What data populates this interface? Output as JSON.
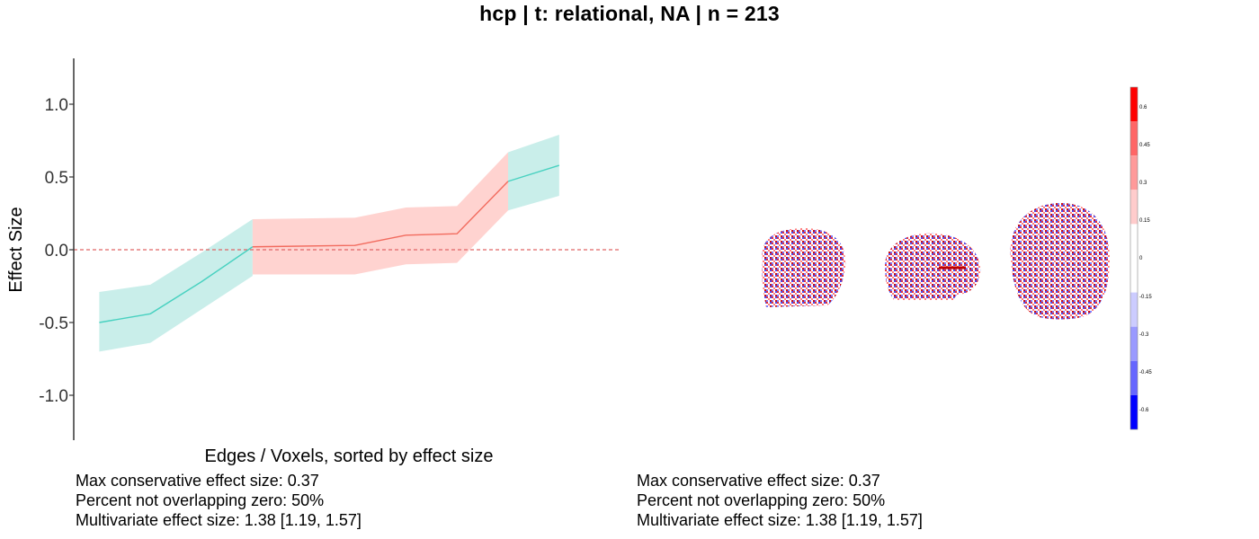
{
  "title": "hcp | t: relational, NA | n = 213",
  "chart_data": {
    "type": "line",
    "xlabel": "Edges / Voxels, sorted by effect size",
    "ylabel": "Effect Size",
    "ylim": [
      -1.3,
      1.3
    ],
    "yticks": [
      {
        "value": 1.0,
        "label": "1.0"
      },
      {
        "value": 0.5,
        "label": "0.5"
      },
      {
        "value": 0.0,
        "label": "0.0"
      },
      {
        "value": -0.5,
        "label": "-0.5"
      },
      {
        "value": -1.0,
        "label": "-1.0"
      }
    ],
    "reference_line": {
      "y": 0,
      "style": "dashed",
      "color": "#e06666"
    },
    "grid": false,
    "series": [
      {
        "color": "#48d1c0",
        "fill": "#c9eeea",
        "points": [
          {
            "x": 1,
            "y": -0.5,
            "lo": -0.7,
            "hi": -0.29
          },
          {
            "x": 2,
            "y": -0.44,
            "lo": -0.64,
            "hi": -0.24
          },
          {
            "x": 3,
            "y": -0.22,
            "lo": -0.41,
            "hi": -0.02
          },
          {
            "x": 4,
            "y": 0.02,
            "lo": -0.18,
            "hi": 0.21
          }
        ]
      },
      {
        "color": "#f26b5e",
        "fill": "#ffd3d0",
        "points": [
          {
            "x": 4,
            "y": 0.02,
            "lo": -0.17,
            "hi": 0.21
          },
          {
            "x": 6,
            "y": 0.03,
            "lo": -0.17,
            "hi": 0.22
          },
          {
            "x": 7,
            "y": 0.1,
            "lo": -0.1,
            "hi": 0.29
          },
          {
            "x": 8,
            "y": 0.11,
            "lo": -0.09,
            "hi": 0.3
          },
          {
            "x": 9,
            "y": 0.47,
            "lo": 0.27,
            "hi": 0.67
          }
        ]
      },
      {
        "color": "#48d1c0",
        "fill": "#c9eeea",
        "points": [
          {
            "x": 9,
            "y": 0.47,
            "lo": 0.27,
            "hi": 0.67
          },
          {
            "x": 10,
            "y": 0.58,
            "lo": 0.37,
            "hi": 0.79
          }
        ]
      }
    ],
    "xlim": [
      0.5,
      11.2
    ]
  },
  "colorbar": {
    "labels": [
      "0.6",
      "0.45",
      "0.3",
      "0.15",
      "0",
      "-0.15",
      "-0.3",
      "-0.45",
      "-0.6"
    ],
    "colors": [
      "#ff0000",
      "#ff6666",
      "#ff9a9a",
      "#ffcccc",
      "#ffffff",
      "#ffffff",
      "#ccccff",
      "#9a9aff",
      "#6666ff",
      "#0000ff"
    ]
  },
  "stats_left": {
    "line1": "Max conservative effect size: 0.37",
    "line2": "Percent not overlapping zero: 50%",
    "line3": "Multivariate effect size: 1.38 [1.19, 1.57]"
  },
  "stats_right": {
    "line1": "Max conservative effect size: 0.37",
    "line2": "Percent not overlapping zero: 50%",
    "line3": "Multivariate effect size: 1.38 [1.19, 1.57]"
  }
}
